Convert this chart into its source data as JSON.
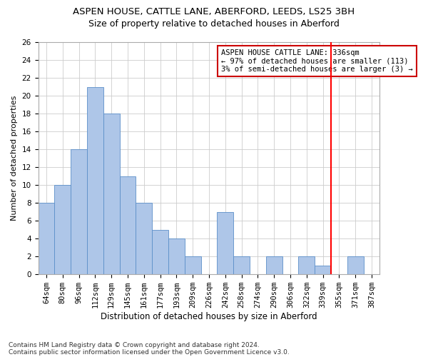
{
  "title1": "ASPEN HOUSE, CATTLE LANE, ABERFORD, LEEDS, LS25 3BH",
  "title2": "Size of property relative to detached houses in Aberford",
  "xlabel": "Distribution of detached houses by size in Aberford",
  "ylabel": "Number of detached properties",
  "categories": [
    "64sqm",
    "80sqm",
    "96sqm",
    "112sqm",
    "129sqm",
    "145sqm",
    "161sqm",
    "177sqm",
    "193sqm",
    "209sqm",
    "226sqm",
    "242sqm",
    "258sqm",
    "274sqm",
    "290sqm",
    "306sqm",
    "322sqm",
    "339sqm",
    "355sqm",
    "371sqm",
    "387sqm"
  ],
  "values": [
    8,
    10,
    14,
    21,
    18,
    11,
    8,
    5,
    4,
    2,
    0,
    7,
    2,
    0,
    2,
    0,
    2,
    1,
    0,
    2,
    0
  ],
  "bar_color": "#aec6e8",
  "bar_edge_color": "#5b8fc9",
  "highlight_label": "ASPEN HOUSE CATTLE LANE: 336sqm",
  "highlight_line1": "← 97% of detached houses are smaller (113)",
  "highlight_line2": "3% of semi-detached houses are larger (3) →",
  "annotation_box_color": "#cc0000",
  "ylim": [
    0,
    26
  ],
  "yticks": [
    0,
    2,
    4,
    6,
    8,
    10,
    12,
    14,
    16,
    18,
    20,
    22,
    24,
    26
  ],
  "footnote1": "Contains HM Land Registry data © Crown copyright and database right 2024.",
  "footnote2": "Contains public sector information licensed under the Open Government Licence v3.0.",
  "title1_fontsize": 9.5,
  "title2_fontsize": 9,
  "xlabel_fontsize": 8.5,
  "ylabel_fontsize": 8,
  "tick_fontsize": 7.5,
  "annot_fontsize": 7.5,
  "footnote_fontsize": 6.5
}
